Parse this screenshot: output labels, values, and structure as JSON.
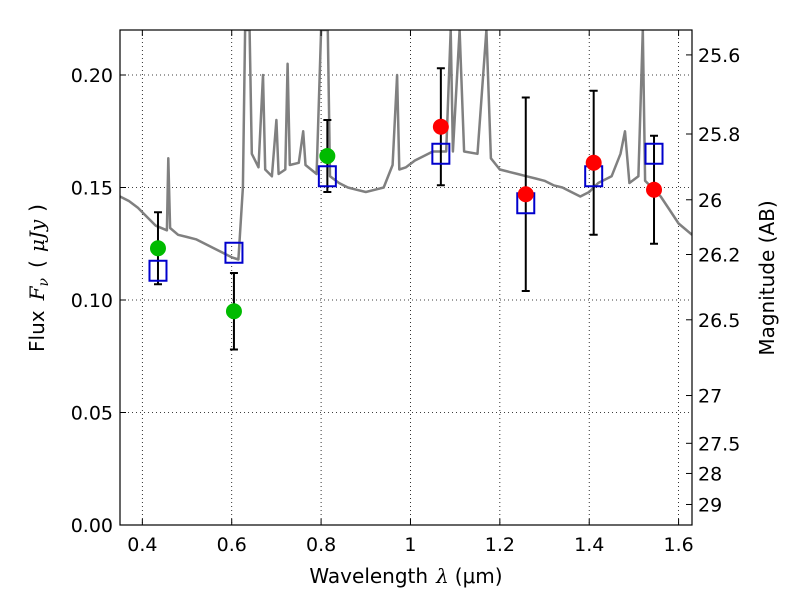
{
  "chart_data": {
    "type": "scatter",
    "xlabel_text": "Wavelength",
    "xlabel_symbol": "λ",
    "xlabel_unit": "(μm)",
    "ylabel_text": "Flux",
    "ylabel_symbol": "F",
    "ylabel_subscript": "ν",
    "ylabel_unit_open": "(",
    "ylabel_unit": "μJy",
    "ylabel_unit_close": ")",
    "y2label": "Magnitude (AB)",
    "xlim": [
      0.35,
      1.63
    ],
    "ylim": [
      0.0,
      0.22
    ],
    "grid": true,
    "xticks": [
      {
        "value": 0.4,
        "label": "0.4"
      },
      {
        "value": 0.6,
        "label": "0.6"
      },
      {
        "value": 0.8,
        "label": "0.8"
      },
      {
        "value": 1.0,
        "label": "1"
      },
      {
        "value": 1.2,
        "label": "1.2"
      },
      {
        "value": 1.4,
        "label": "1.4"
      },
      {
        "value": 1.6,
        "label": "1.6"
      }
    ],
    "yticks": [
      {
        "value": 0.0,
        "label": "0.00"
      },
      {
        "value": 0.05,
        "label": "0.05"
      },
      {
        "value": 0.1,
        "label": "0.10"
      },
      {
        "value": 0.15,
        "label": "0.15"
      },
      {
        "value": 0.2,
        "label": "0.20"
      }
    ],
    "y2ticks": [
      {
        "mag": 25.6,
        "label": "25.6"
      },
      {
        "mag": 25.8,
        "label": "25.8"
      },
      {
        "mag": 26.0,
        "label": "26"
      },
      {
        "mag": 26.2,
        "label": "26.2"
      },
      {
        "mag": 26.5,
        "label": "26.5"
      },
      {
        "mag": 27.0,
        "label": "27"
      },
      {
        "mag": 27.5,
        "label": "27.5"
      },
      {
        "mag": 28.0,
        "label": "28"
      },
      {
        "mag": 29.0,
        "label": "29"
      }
    ],
    "series": [
      {
        "name": "model spectrum",
        "kind": "line",
        "color": "#808080",
        "points": [
          [
            0.35,
            0.146
          ],
          [
            0.37,
            0.144
          ],
          [
            0.39,
            0.141
          ],
          [
            0.41,
            0.137
          ],
          [
            0.43,
            0.133
          ],
          [
            0.455,
            0.131
          ],
          [
            0.458,
            0.163
          ],
          [
            0.462,
            0.132
          ],
          [
            0.48,
            0.129
          ],
          [
            0.5,
            0.128
          ],
          [
            0.52,
            0.127
          ],
          [
            0.54,
            0.125
          ],
          [
            0.56,
            0.123
          ],
          [
            0.58,
            0.121
          ],
          [
            0.6,
            0.119
          ],
          [
            0.615,
            0.118
          ],
          [
            0.625,
            0.15
          ],
          [
            0.63,
            0.22
          ],
          [
            0.64,
            0.22
          ],
          [
            0.645,
            0.165
          ],
          [
            0.66,
            0.159
          ],
          [
            0.67,
            0.2
          ],
          [
            0.675,
            0.158
          ],
          [
            0.69,
            0.155
          ],
          [
            0.7,
            0.18
          ],
          [
            0.705,
            0.156
          ],
          [
            0.72,
            0.158
          ],
          [
            0.725,
            0.205
          ],
          [
            0.73,
            0.16
          ],
          [
            0.75,
            0.161
          ],
          [
            0.76,
            0.175
          ],
          [
            0.765,
            0.16
          ],
          [
            0.79,
            0.156
          ],
          [
            0.8,
            0.22
          ],
          [
            0.81,
            0.22
          ],
          [
            0.815,
            0.22
          ],
          [
            0.82,
            0.155
          ],
          [
            0.84,
            0.152
          ],
          [
            0.86,
            0.15
          ],
          [
            0.88,
            0.149
          ],
          [
            0.9,
            0.148
          ],
          [
            0.92,
            0.149
          ],
          [
            0.94,
            0.15
          ],
          [
            0.96,
            0.16
          ],
          [
            0.97,
            0.2
          ],
          [
            0.975,
            0.158
          ],
          [
            0.99,
            0.159
          ],
          [
            1.01,
            0.162
          ],
          [
            1.03,
            0.164
          ],
          [
            1.05,
            0.166
          ],
          [
            1.08,
            0.166
          ],
          [
            1.09,
            0.22
          ],
          [
            1.095,
            0.166
          ],
          [
            1.11,
            0.22
          ],
          [
            1.12,
            0.166
          ],
          [
            1.15,
            0.165
          ],
          [
            1.17,
            0.22
          ],
          [
            1.18,
            0.163
          ],
          [
            1.2,
            0.158
          ],
          [
            1.22,
            0.157
          ],
          [
            1.24,
            0.156
          ],
          [
            1.26,
            0.155
          ],
          [
            1.28,
            0.154
          ],
          [
            1.3,
            0.153
          ],
          [
            1.32,
            0.151
          ],
          [
            1.34,
            0.15
          ],
          [
            1.36,
            0.148
          ],
          [
            1.38,
            0.146
          ],
          [
            1.4,
            0.148
          ],
          [
            1.42,
            0.152
          ],
          [
            1.45,
            0.155
          ],
          [
            1.47,
            0.165
          ],
          [
            1.48,
            0.175
          ],
          [
            1.49,
            0.152
          ],
          [
            1.51,
            0.155
          ],
          [
            1.52,
            0.22
          ],
          [
            1.525,
            0.153
          ],
          [
            1.54,
            0.15
          ],
          [
            1.56,
            0.146
          ],
          [
            1.58,
            0.14
          ],
          [
            1.6,
            0.134
          ],
          [
            1.63,
            0.129
          ]
        ]
      },
      {
        "name": "model photometry",
        "kind": "open-square",
        "color": "#0000cc",
        "points": [
          [
            0.435,
            0.113
          ],
          [
            0.605,
            0.121
          ],
          [
            0.814,
            0.155
          ],
          [
            1.068,
            0.165
          ],
          [
            1.258,
            0.143
          ],
          [
            1.41,
            0.155
          ],
          [
            1.545,
            0.165
          ]
        ]
      },
      {
        "name": "observed (green)",
        "kind": "filled-circle",
        "color": "#00bb00",
        "points": [
          {
            "x": 0.435,
            "y": 0.123,
            "err": 0.016
          },
          {
            "x": 0.605,
            "y": 0.095,
            "err": 0.017
          },
          {
            "x": 0.814,
            "y": 0.164,
            "err": 0.016
          }
        ]
      },
      {
        "name": "observed (red)",
        "kind": "filled-circle",
        "color": "#ff0000",
        "points": [
          {
            "x": 1.068,
            "y": 0.177,
            "err": 0.026
          },
          {
            "x": 1.258,
            "y": 0.147,
            "err": 0.043
          },
          {
            "x": 1.41,
            "y": 0.161,
            "err": 0.032
          },
          {
            "x": 1.545,
            "y": 0.149,
            "err": 0.024
          }
        ]
      }
    ]
  }
}
